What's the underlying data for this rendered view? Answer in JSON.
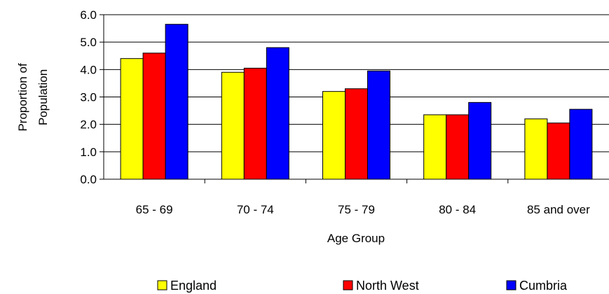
{
  "chart_data": {
    "type": "bar",
    "title": "",
    "xlabel": "Age Group",
    "ylabel_lines": [
      "Proportion of",
      "Population"
    ],
    "categories": [
      "65 - 69",
      "70 - 74",
      "75 - 79",
      "80 - 84",
      "85 and over"
    ],
    "series": [
      {
        "name": "England",
        "values": [
          4.4,
          3.9,
          3.2,
          2.35,
          2.2
        ],
        "color": "#ffff00"
      },
      {
        "name": "North West",
        "values": [
          4.6,
          4.05,
          3.3,
          2.35,
          2.05
        ],
        "color": "#ff0000"
      },
      {
        "name": "Cumbria",
        "values": [
          5.65,
          4.8,
          3.95,
          2.8,
          2.55
        ],
        "color": "#0000ff"
      }
    ],
    "ylim": [
      0,
      6
    ],
    "yticks": [
      "0.0",
      "1.0",
      "2.0",
      "3.0",
      "4.0",
      "5.0",
      "6.0"
    ],
    "grid": true,
    "legend_position": "bottom"
  }
}
